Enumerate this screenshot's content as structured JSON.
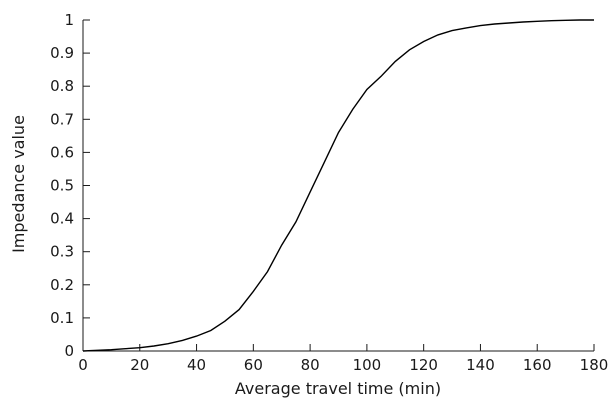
{
  "chart_data": {
    "type": "line",
    "title": "",
    "xlabel": "Average travel time (min)",
    "ylabel": "Impedance value",
    "xlim": [
      0,
      180
    ],
    "ylim": [
      0,
      1
    ],
    "xticks": [
      0,
      20,
      40,
      60,
      80,
      100,
      120,
      140,
      160,
      180
    ],
    "xtick_labels": [
      "0",
      "20",
      "40",
      "60",
      "80",
      "100",
      "120",
      "140",
      "160",
      "180"
    ],
    "yticks": [
      0,
      0.1,
      0.2,
      0.3,
      0.4,
      0.5,
      0.6,
      0.7,
      0.8,
      0.9,
      1
    ],
    "ytick_labels": [
      "0",
      "0.1",
      "0.2",
      "0.3",
      "0.4",
      "0.5",
      "0.6",
      "0.7",
      "0.8",
      "0.9",
      "1"
    ],
    "grid": false,
    "series": [
      {
        "color": "#000000",
        "x": [
          0,
          5,
          10,
          15,
          20,
          25,
          30,
          35,
          40,
          45,
          50,
          55,
          60,
          65,
          70,
          75,
          80,
          85,
          90,
          95,
          100,
          105,
          110,
          115,
          120,
          125,
          130,
          135,
          140,
          145,
          150,
          155,
          160,
          165,
          170,
          175,
          180
        ],
        "y": [
          0,
          0.002,
          0.004,
          0.007,
          0.01,
          0.015,
          0.022,
          0.032,
          0.045,
          0.062,
          0.09,
          0.125,
          0.18,
          0.24,
          0.32,
          0.39,
          0.48,
          0.57,
          0.66,
          0.73,
          0.79,
          0.83,
          0.875,
          0.91,
          0.935,
          0.955,
          0.968,
          0.976,
          0.983,
          0.988,
          0.991,
          0.994,
          0.996,
          0.998,
          0.999,
          1.0,
          1.0
        ]
      }
    ]
  }
}
